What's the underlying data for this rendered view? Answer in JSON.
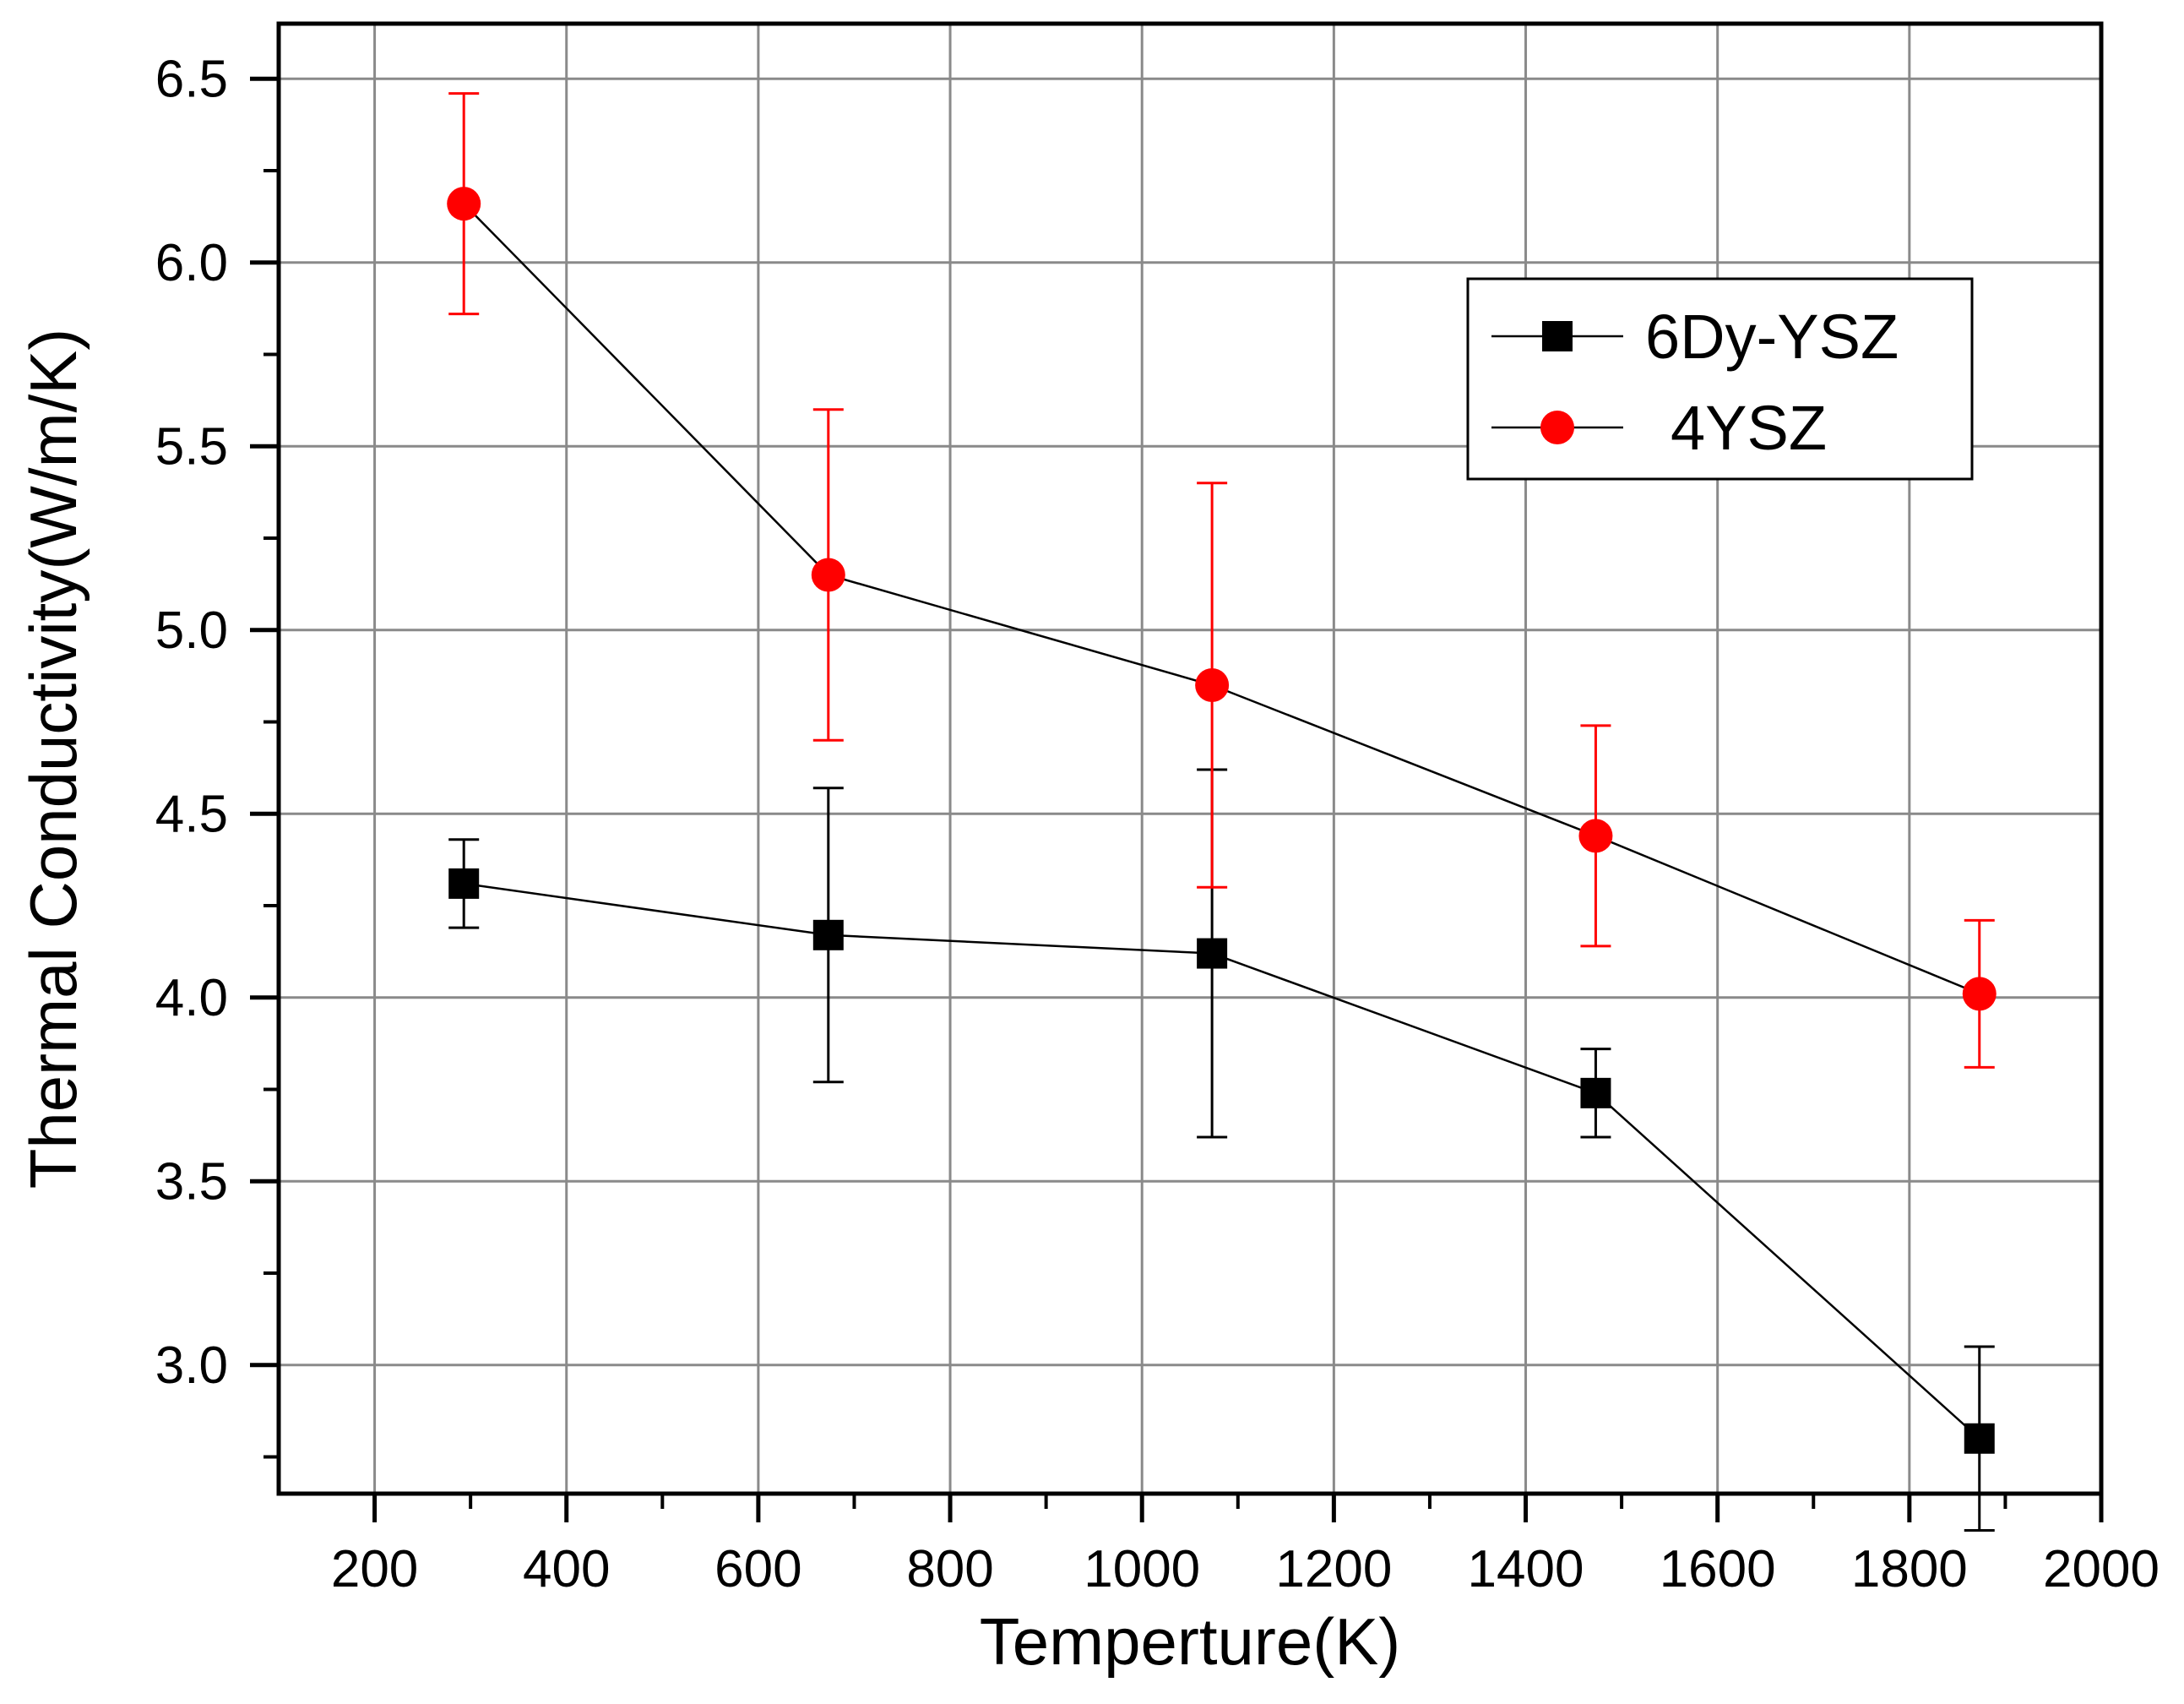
{
  "chart_data": {
    "type": "scatter",
    "title": "",
    "xlabel": "Temperture(K)",
    "ylabel": "Thermal Conductivity(W/m/K)",
    "xlim": [
      100,
      2000
    ],
    "ylim": [
      2.65,
      6.65
    ],
    "xticks": [
      "200",
      "400",
      "600",
      "800",
      "1000",
      "1200",
      "1400",
      "1600",
      "1800",
      "2000"
    ],
    "yticks": [
      "3.0",
      "3.5",
      "4.0",
      "4.5",
      "5.0",
      "5.5",
      "6.0",
      "6.5"
    ],
    "grid": true,
    "legend_position": "top-right",
    "series": [
      {
        "name": "6Dy-YSZ",
        "marker": "square",
        "color": "#000000",
        "errorbar_color": "#000000",
        "x": [
          293,
          673,
          1073,
          1473,
          1873
        ],
        "y": [
          4.31,
          4.17,
          4.12,
          3.74,
          2.8
        ],
        "err_low": [
          4.19,
          3.77,
          3.62,
          3.62,
          2.55
        ],
        "err_high": [
          4.43,
          4.57,
          4.62,
          3.86,
          3.05
        ]
      },
      {
        "name": "4YSZ",
        "marker": "circle",
        "color": "#ff0000",
        "errorbar_color": "#ff0000",
        "x": [
          293,
          673,
          1073,
          1473,
          1873
        ],
        "y": [
          6.16,
          5.15,
          4.85,
          4.44,
          4.01
        ],
        "err_low": [
          5.86,
          4.7,
          4.3,
          4.14,
          3.81
        ],
        "err_high": [
          6.46,
          5.6,
          5.4,
          4.74,
          4.21
        ]
      }
    ]
  }
}
